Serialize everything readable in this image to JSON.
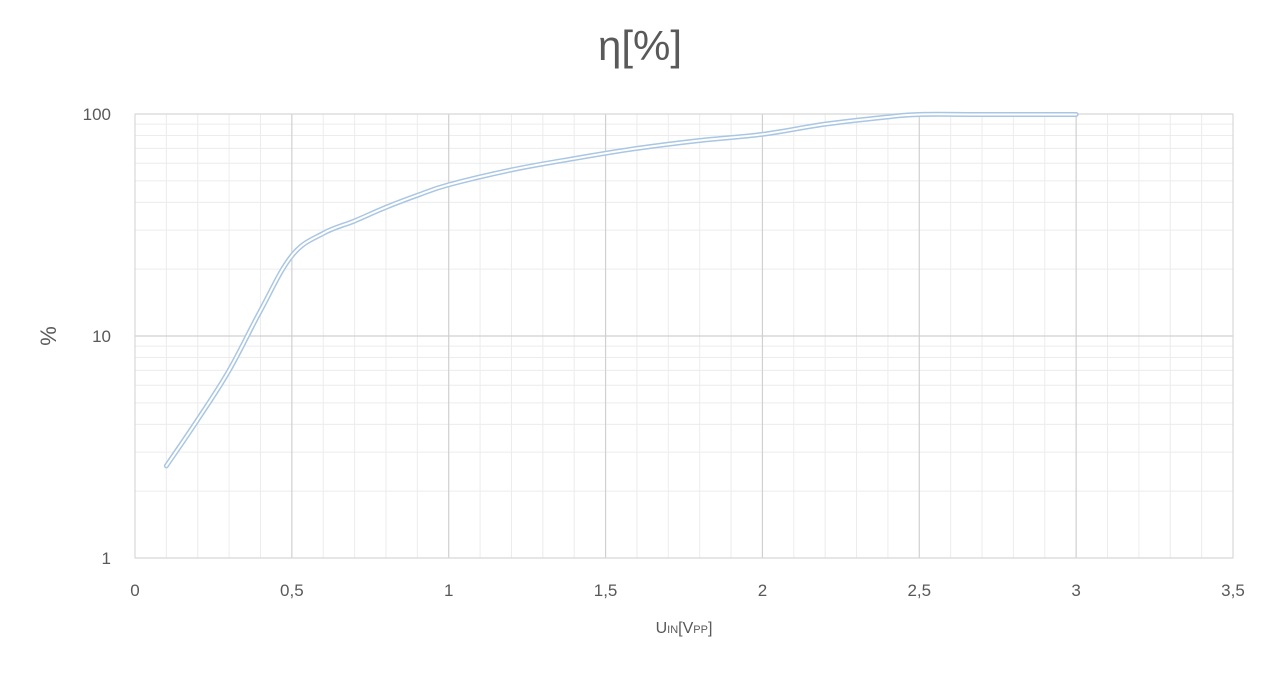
{
  "chart_data": {
    "type": "line",
    "title": "η[%]",
    "xlabel": {
      "main": "U",
      "sub1": "IN",
      "bracket_open": "[V",
      "sub2": "PP",
      "bracket_close": "]"
    },
    "ylabel": "%",
    "xlim": [
      0,
      3.5
    ],
    "ylim": [
      1,
      100
    ],
    "yscale": "log",
    "x_ticks": [
      0,
      0.5,
      1,
      1.5,
      2,
      2.5,
      3,
      3.5
    ],
    "x_tick_labels": [
      "0",
      "0,5",
      "1",
      "1,5",
      "2",
      "2,5",
      "3",
      "3,5"
    ],
    "y_ticks": [
      1,
      10,
      100
    ],
    "y_tick_labels": [
      "1",
      "10",
      "100"
    ],
    "grid": true,
    "legend": "none",
    "series": [
      {
        "color": "#a9c6e3",
        "x": [
          0.1,
          0.2,
          0.3,
          0.4,
          0.5,
          0.6,
          0.7,
          0.8,
          0.9,
          1.0,
          1.2,
          1.4,
          1.6,
          1.8,
          2.0,
          2.2,
          2.4,
          2.5,
          2.7,
          3.0
        ],
        "y": [
          2.6,
          4.2,
          7.0,
          13.0,
          23.0,
          29.0,
          33.0,
          38.0,
          43.0,
          48.0,
          56.0,
          63.0,
          70.0,
          76.0,
          81.0,
          90.0,
          97.0,
          99.5,
          99.5,
          99.5
        ]
      }
    ]
  }
}
